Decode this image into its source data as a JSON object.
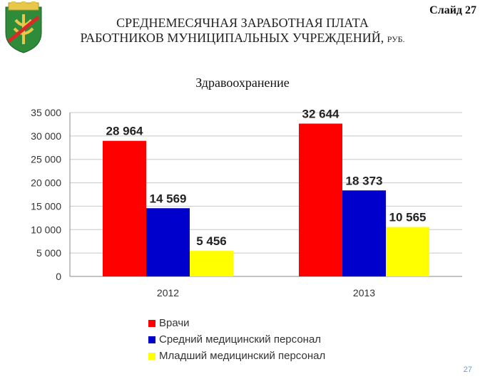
{
  "slide": {
    "title_line1": "СРЕДНЕМЕСЯЧНАЯ ЗАРАБОТНАЯ ПЛАТА",
    "title_line2": "РАБОТНИКОВ МУНИЦИПАЛЬНЫХ УЧРЕЖДЕНИЙ,",
    "title_unit": "РУБ.",
    "slide_label": "Слайд 27",
    "page_number": "27"
  },
  "colors": {
    "logo_green": "#2e8b3a",
    "logo_gold": "#e8c84a"
  },
  "chart_data": {
    "type": "bar",
    "title": "Здравоохранение",
    "categories": [
      "2012",
      "2013"
    ],
    "series": [
      {
        "name": "Врачи",
        "color": "#ff0000",
        "values": [
          28964,
          32644
        ],
        "labels": [
          "28 964",
          "32 644"
        ]
      },
      {
        "name": "Средний медицинский персонал",
        "color": "#0000cc",
        "values": [
          14569,
          18373
        ],
        "labels": [
          "14 569",
          "18 373"
        ]
      },
      {
        "name": "Младший медицинский персонал",
        "color": "#ffff00",
        "values": [
          5456,
          10565
        ],
        "labels": [
          "5 456",
          "10 565"
        ]
      }
    ],
    "yticks": [
      0,
      5000,
      10000,
      15000,
      20000,
      25000,
      30000,
      35000
    ],
    "ytick_labels": [
      "0",
      "5 000",
      "10 000",
      "15 000",
      "20 000",
      "25 000",
      "30 000",
      "35 000"
    ],
    "ylim": [
      0,
      35000
    ],
    "grid": true,
    "legend_position": "bottom"
  }
}
